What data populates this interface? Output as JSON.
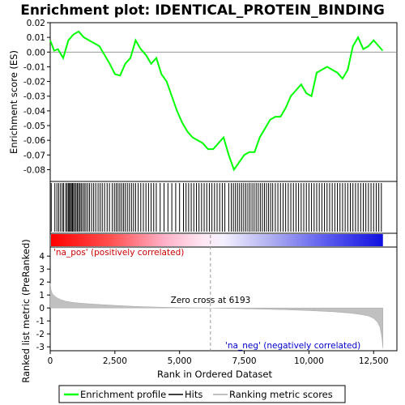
{
  "chart_data": {
    "type": "line",
    "title": "Enrichment plot: IDENTICAL_PROTEIN_BINDING",
    "panels": {
      "enrichment": {
        "ylabel": "Enrichment score (ES)",
        "ylim": [
          -0.088,
          0.02
        ],
        "yticks": [
          0.02,
          0.01,
          0.0,
          -0.01,
          -0.02,
          -0.03,
          -0.04,
          -0.05,
          -0.06,
          -0.07,
          -0.08
        ],
        "ytick_labels": [
          "0.02",
          "0.01",
          "0.00",
          "-0.01",
          "-0.02",
          "-0.03",
          "-0.04",
          "-0.05",
          "-0.06",
          "-0.07",
          "-0.08"
        ],
        "series": [
          {
            "name": "Enrichment profile",
            "color": "#00ff00",
            "x": [
              0,
              150,
              300,
              500,
              700,
              900,
              1100,
              1300,
              1500,
              1700,
              1900,
              2100,
              2300,
              2500,
              2700,
              2900,
              3100,
              3300,
              3500,
              3700,
              3900,
              4100,
              4300,
              4500,
              4700,
              4900,
              5100,
              5300,
              5500,
              5700,
              5900,
              6100,
              6300,
              6500,
              6700,
              6900,
              7100,
              7300,
              7500,
              7700,
              7900,
              8100,
              8300,
              8500,
              8700,
              8900,
              9100,
              9300,
              9500,
              9700,
              9900,
              10100,
              10300,
              10500,
              10700,
              10900,
              11100,
              11300,
              11500,
              11700,
              11900,
              12100,
              12300,
              12500,
              12700,
              12850
            ],
            "y": [
              0.008,
              0.001,
              0.002,
              -0.004,
              0.008,
              0.012,
              0.014,
              0.01,
              0.008,
              0.006,
              0.004,
              -0.002,
              -0.008,
              -0.015,
              -0.016,
              -0.008,
              -0.004,
              0.008,
              0.002,
              -0.002,
              -0.008,
              -0.004,
              -0.015,
              -0.02,
              -0.03,
              -0.04,
              -0.048,
              -0.054,
              -0.058,
              -0.06,
              -0.062,
              -0.066,
              -0.066,
              -0.062,
              -0.058,
              -0.07,
              -0.08,
              -0.075,
              -0.07,
              -0.068,
              -0.068,
              -0.058,
              -0.052,
              -0.046,
              -0.044,
              -0.044,
              -0.038,
              -0.03,
              -0.026,
              -0.022,
              -0.028,
              -0.03,
              -0.014,
              -0.012,
              -0.01,
              -0.012,
              -0.014,
              -0.018,
              -0.012,
              0.004,
              0.01,
              0.002,
              0.004,
              0.008,
              0.004,
              0.001
            ]
          }
        ]
      },
      "hits": {
        "name": "Hits",
        "color": "#000000",
        "positions": [
          40,
          180,
          260,
          330,
          400,
          470,
          520,
          600,
          650,
          700,
          740,
          780,
          820,
          860,
          900,
          950,
          1000,
          1050,
          1100,
          1150,
          1200,
          1260,
          1320,
          1380,
          1450,
          1520,
          1600,
          1680,
          1760,
          1850,
          1930,
          2010,
          2100,
          2200,
          2290,
          2400,
          2480,
          2550,
          2620,
          2690,
          2760,
          2830,
          2900,
          2980,
          3060,
          3140,
          3220,
          3300,
          3400,
          3500,
          3600,
          3700,
          3800,
          3900,
          4000,
          4100,
          4250,
          4400,
          4550,
          4700,
          4850,
          5000,
          5150,
          5250,
          5350,
          5450,
          5550,
          5650,
          5750,
          5850,
          5950,
          6050,
          6150,
          6250,
          6350,
          6450,
          6550,
          6650,
          6750,
          6900,
          7000,
          7080,
          7160,
          7240,
          7320,
          7400,
          7480,
          7560,
          7640,
          7720,
          7800,
          7880,
          7960,
          8040,
          8120,
          8200,
          8280,
          8360,
          8440,
          8520,
          8600,
          8700,
          8800,
          8900,
          9000,
          9100,
          9200,
          9300,
          9400,
          9500,
          9600,
          9700,
          9800,
          9900,
          10000,
          10100,
          10200,
          10300,
          10400,
          10500,
          10600,
          10700,
          10800,
          10900,
          11000,
          11100,
          11200,
          11300,
          11400,
          11500,
          11600,
          11700,
          11800,
          11900,
          12000,
          12100,
          12200,
          12300,
          12400,
          12500,
          12600,
          12700,
          12800
        ]
      },
      "ranked_metric": {
        "name": "Ranking metric scores",
        "color": "#c0c0c0",
        "ylabel": "Ranked list metric (PreRanked)",
        "ylim": [
          -3.3,
          4.7
        ],
        "yticks": [
          4,
          3,
          2,
          1,
          0,
          -1,
          -2,
          -3
        ],
        "ytick_labels": [
          "4",
          "3",
          "2",
          "1",
          "0",
          "-1",
          "-2",
          "-3"
        ],
        "x": [
          0,
          30,
          80,
          150,
          250,
          400,
          600,
          900,
          1300,
          1800,
          2500,
          3300,
          4200,
          5200,
          6193,
          7000,
          8000,
          9000,
          10000,
          11000,
          11600,
          12000,
          12300,
          12500,
          12650,
          12750,
          12820,
          12860
        ],
        "y": [
          1.9,
          1.4,
          1.1,
          0.95,
          0.8,
          0.65,
          0.52,
          0.42,
          0.35,
          0.28,
          0.2,
          0.12,
          0.06,
          0.02,
          0.0,
          -0.04,
          -0.08,
          -0.13,
          -0.2,
          -0.3,
          -0.4,
          -0.5,
          -0.62,
          -0.8,
          -1.1,
          -1.5,
          -2.3,
          -3.1
        ]
      }
    },
    "xlabel": "Rank in Ordered Dataset",
    "xlim": [
      0,
      13400
    ],
    "xticks": [
      0,
      2500,
      5000,
      7500,
      10000,
      12500
    ],
    "xtick_labels": [
      "0",
      "2,500",
      "5,000",
      "7,500",
      "10,000",
      "12,500"
    ],
    "zero_cross": 6193,
    "annotations": {
      "zero_cross_text": "Zero cross at 6193",
      "pos_label": "'na_pos' (positively correlated)",
      "neg_label": "'na_neg' (negatively correlated)",
      "pos_color": "#cc0000",
      "neg_color": "#0000cc"
    },
    "legend": {
      "placement": "bottom",
      "items": [
        {
          "label": "Enrichment profile",
          "color": "#00ff00"
        },
        {
          "label": "Hits",
          "color": "#000000"
        },
        {
          "label": "Ranking metric scores",
          "color": "#c0c0c0"
        }
      ]
    },
    "grid": false
  }
}
